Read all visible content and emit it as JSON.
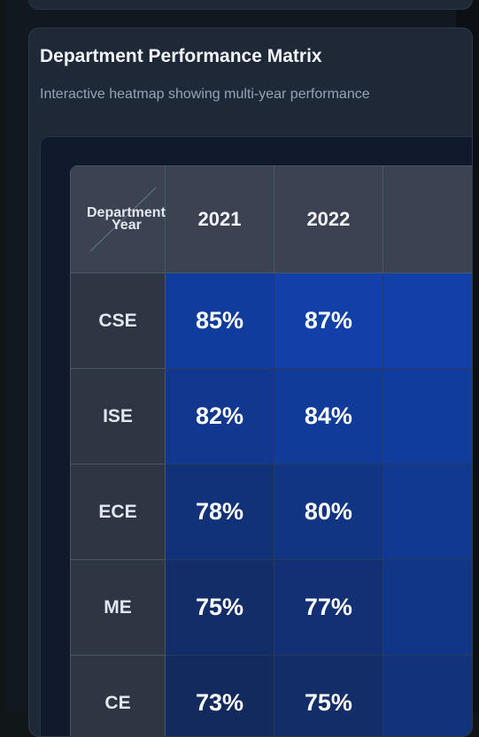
{
  "card": {
    "title": "Department Performance Matrix",
    "subtitle": "Interactive heatmap showing multi-year performance"
  },
  "matrix": {
    "corner_dept": "Department",
    "corner_year": "Year"
  },
  "chart_data": {
    "type": "heatmap",
    "xlabel": "Year",
    "ylabel": "Department",
    "x": [
      "2021",
      "2022",
      ""
    ],
    "y": [
      "CSE",
      "ISE",
      "ECE",
      "ME",
      "CE"
    ],
    "values": [
      [
        85,
        87,
        null
      ],
      [
        82,
        84,
        null
      ],
      [
        78,
        80,
        null
      ],
      [
        75,
        77,
        null
      ],
      [
        73,
        75,
        null
      ]
    ],
    "unit": "%",
    "colors": {
      "low": "#132a5e",
      "high": "#1040a8"
    }
  }
}
